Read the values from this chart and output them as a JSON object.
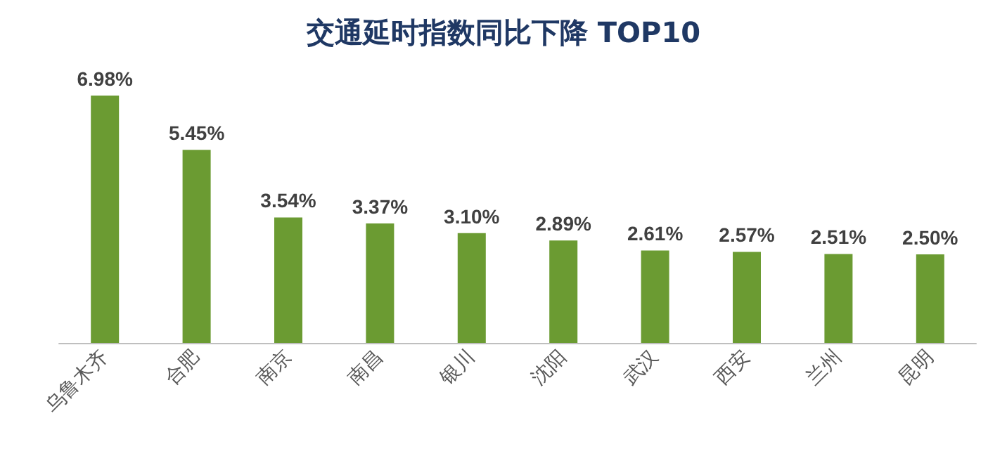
{
  "chart_data": {
    "type": "bar",
    "title": "交通延时指数同比下降 TOP10",
    "categories": [
      "乌鲁木齐",
      "合肥",
      "南京",
      "南昌",
      "银川",
      "沈阳",
      "武汉",
      "西安",
      "兰州",
      "昆明"
    ],
    "values": [
      6.98,
      5.45,
      3.54,
      3.37,
      3.1,
      2.89,
      2.61,
      2.57,
      2.51,
      2.5
    ],
    "value_labels": [
      "6.98%",
      "5.45%",
      "3.54%",
      "3.37%",
      "3.10%",
      "2.89%",
      "2.61%",
      "2.57%",
      "2.51%",
      "2.50%"
    ],
    "color": "#6b9b32"
  }
}
